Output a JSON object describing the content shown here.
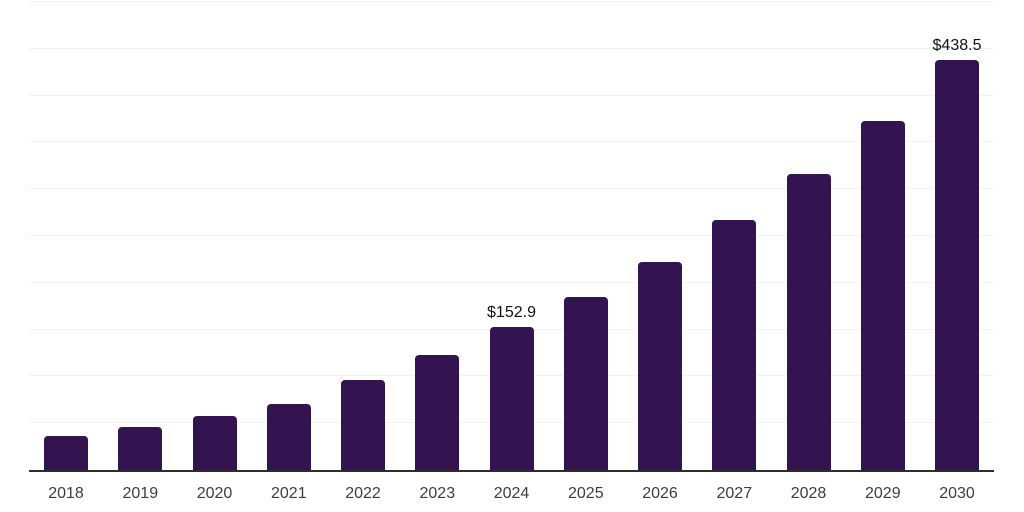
{
  "chart_data": {
    "type": "bar",
    "title": "",
    "xlabel": "",
    "ylabel": "",
    "categories": [
      "2018",
      "2019",
      "2020",
      "2021",
      "2022",
      "2023",
      "2024",
      "2025",
      "2026",
      "2027",
      "2028",
      "2029",
      "2030"
    ],
    "values": [
      36.5,
      45.5,
      57.3,
      71.0,
      96.1,
      122.5,
      152.9,
      185.0,
      222.0,
      266.9,
      316.4,
      373.0,
      438.5
    ],
    "point_labels": [
      null,
      null,
      null,
      null,
      null,
      null,
      "$152.9",
      null,
      null,
      null,
      null,
      null,
      "$438.5"
    ],
    "ylim": [
      0,
      500
    ],
    "gridline_step": 50,
    "grid": "horizontal-only",
    "legend": "none",
    "y_axis_ticks_visible": false,
    "colors": {
      "bar": "#341450",
      "axis_line": "#2d2d2d",
      "gridline": "#f2f2f2",
      "point_label_text": "#111111",
      "tick_label_text": "#3d3d3d",
      "background": "#ffffff"
    }
  }
}
